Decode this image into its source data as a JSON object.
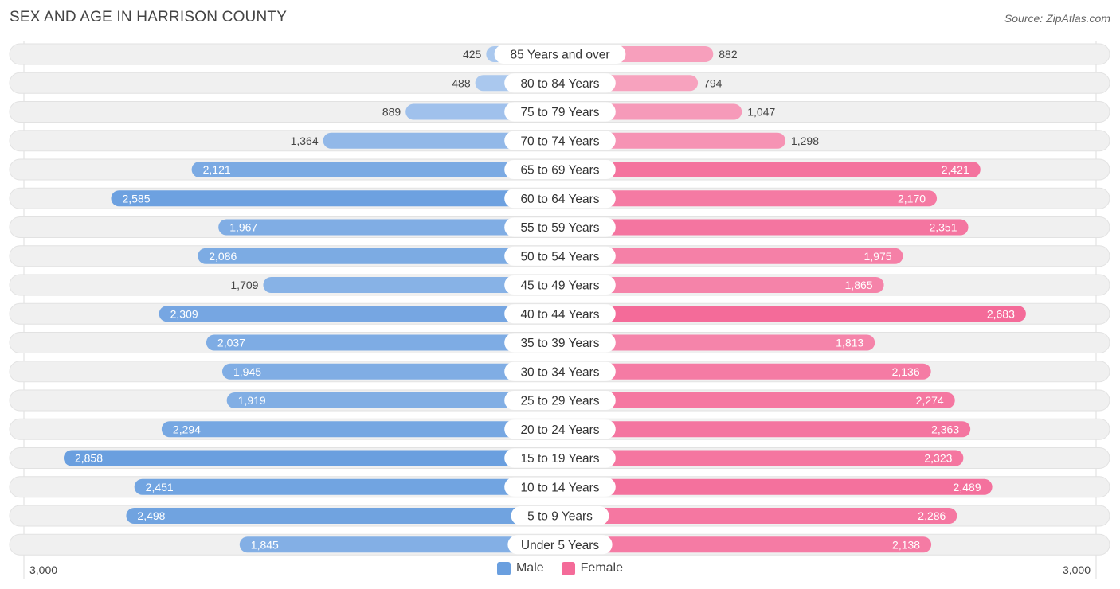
{
  "title": "SEX AND AGE IN HARRISON COUNTY",
  "source": "Source: ZipAtlas.com",
  "colors": {
    "male_strong": "#6a9fdf",
    "male_light": "#aac8ee",
    "female_strong": "#f46b99",
    "female_light": "#f7a9c3",
    "row_bg": "#f0f0f0"
  },
  "chart_data": {
    "type": "bar",
    "orientation": "horizontal-diverging",
    "categories": [
      "85 Years and over",
      "80 to 84 Years",
      "75 to 79 Years",
      "70 to 74 Years",
      "65 to 69 Years",
      "60 to 64 Years",
      "55 to 59 Years",
      "50 to 54 Years",
      "45 to 49 Years",
      "40 to 44 Years",
      "35 to 39 Years",
      "30 to 34 Years",
      "25 to 29 Years",
      "20 to 24 Years",
      "15 to 19 Years",
      "10 to 14 Years",
      "5 to 9 Years",
      "Under 5 Years"
    ],
    "series": [
      {
        "name": "Male",
        "values": [
          425,
          488,
          889,
          1364,
          2121,
          2585,
          1967,
          2086,
          1709,
          2309,
          2037,
          1945,
          1919,
          2294,
          2858,
          2451,
          2498,
          1845
        ],
        "labels": [
          "425",
          "488",
          "889",
          "1,364",
          "2,121",
          "2,585",
          "1,967",
          "2,086",
          "1,709",
          "2,309",
          "2,037",
          "1,945",
          "1,919",
          "2,294",
          "2,858",
          "2,451",
          "2,498",
          "1,845"
        ]
      },
      {
        "name": "Female",
        "values": [
          882,
          794,
          1047,
          1298,
          2421,
          2170,
          2351,
          1975,
          1865,
          2683,
          1813,
          2136,
          2274,
          2363,
          2323,
          2489,
          2286,
          2138
        ],
        "labels": [
          "882",
          "794",
          "1,047",
          "1,298",
          "2,421",
          "2,170",
          "2,351",
          "1,975",
          "1,865",
          "2,683",
          "1,813",
          "2,136",
          "2,274",
          "2,363",
          "2,323",
          "2,489",
          "2,286",
          "2,138"
        ]
      }
    ],
    "xlim": [
      -3000,
      3000
    ],
    "axis_left_label": "3,000",
    "axis_right_label": "3,000",
    "legend_position": "bottom-center"
  }
}
